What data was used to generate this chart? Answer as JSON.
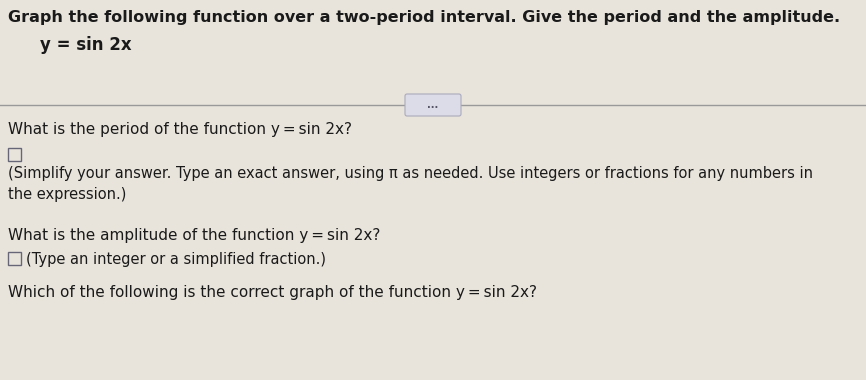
{
  "bg_color": "#e8e4dc",
  "line_color": "#999999",
  "text_color": "#1a1a1a",
  "title_line1": "Graph the following function over a two-period interval. Give the period and the amplitude.",
  "title_line2": "y = sin 2x",
  "separator_button_text": "...",
  "q1": "What is the period of the function y = sin 2x?",
  "q1_hint": "(Simplify your answer. Type an exact answer, using π as needed. Use integers or fractions for any numbers in\nthe expression.)",
  "q2": "What is the amplitude of the function y = sin 2x?",
  "q2_hint": "(Type an integer or a simplified fraction.)",
  "q3": "Which of the following is the correct graph of the function y = sin 2x?",
  "font_size_title": 11.5,
  "font_size_eq": 12.0,
  "font_size_q": 11.0,
  "font_size_hint": 10.5,
  "button_color": "#dcdce8",
  "button_edge_color": "#aaaabc"
}
